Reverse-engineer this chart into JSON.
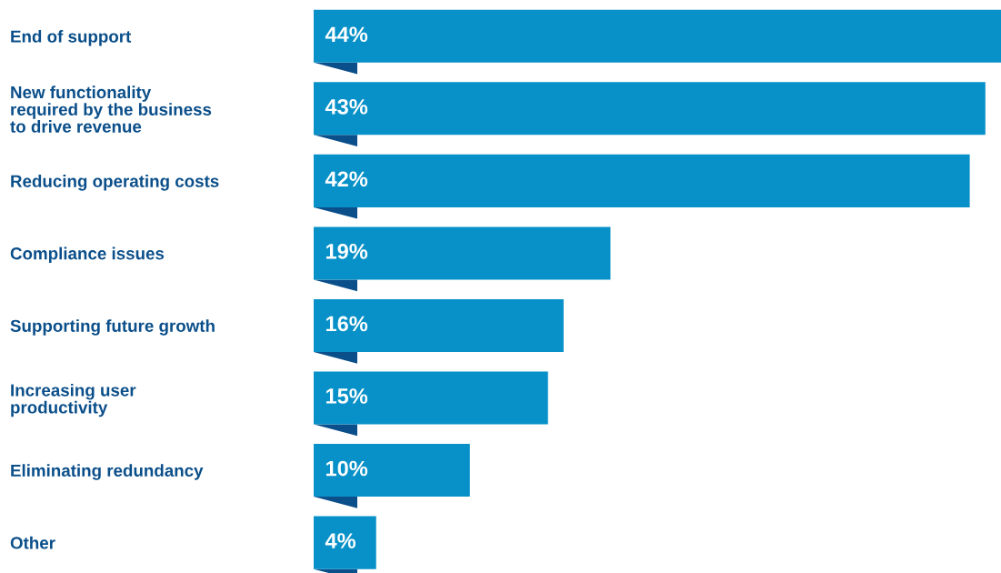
{
  "chart_data": {
    "type": "bar",
    "orientation": "horizontal",
    "categories": [
      "End of support",
      "New functionality\nrequired by the business\nto drive revenue",
      "Reducing operating costs",
      "Compliance issues",
      "Supporting future growth",
      "Increasing user\nproductivity",
      "Eliminating redundancy",
      "Other"
    ],
    "values": [
      44,
      43,
      42,
      19,
      16,
      15,
      10,
      4
    ],
    "value_labels": [
      "44%",
      "43%",
      "42%",
      "19%",
      "16%",
      "15%",
      "10%",
      "4%"
    ],
    "color": "#0891c8",
    "tick_labels": "y",
    "grid": false,
    "legend": false
  }
}
